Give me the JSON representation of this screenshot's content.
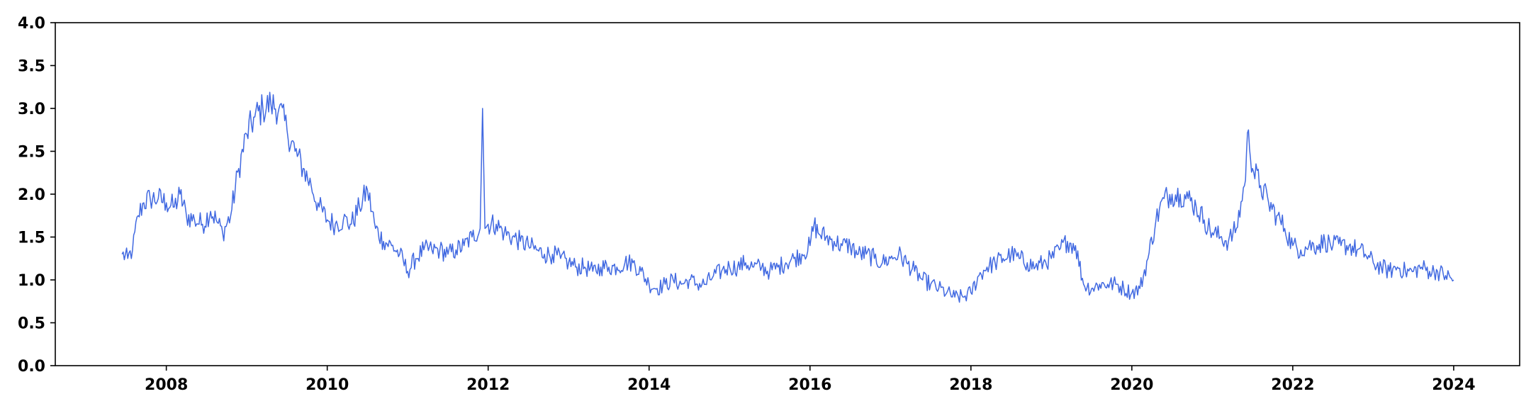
{
  "chart_data": {
    "type": "line",
    "title": "",
    "xlabel": "",
    "ylabel": "",
    "xlim": [
      2006.62,
      2024.82
    ],
    "ylim": [
      0.0,
      4.0
    ],
    "x_ticks": [
      {
        "value": 2008,
        "label": "2008"
      },
      {
        "value": 2010,
        "label": "2010"
      },
      {
        "value": 2012,
        "label": "2012"
      },
      {
        "value": 2014,
        "label": "2014"
      },
      {
        "value": 2016,
        "label": "2016"
      },
      {
        "value": 2018,
        "label": "2018"
      },
      {
        "value": 2020,
        "label": "2020"
      },
      {
        "value": 2022,
        "label": "2022"
      },
      {
        "value": 2024,
        "label": "2024"
      }
    ],
    "y_ticks": [
      {
        "value": 0.0,
        "label": "0.0"
      },
      {
        "value": 0.5,
        "label": "0.5"
      },
      {
        "value": 1.0,
        "label": "1.0"
      },
      {
        "value": 1.5,
        "label": "1.5"
      },
      {
        "value": 2.0,
        "label": "2.0"
      },
      {
        "value": 2.5,
        "label": "2.5"
      },
      {
        "value": 3.0,
        "label": "3.0"
      },
      {
        "value": 3.5,
        "label": "3.5"
      },
      {
        "value": 4.0,
        "label": "4.0"
      }
    ],
    "grid": false,
    "legend": "none",
    "series": [
      {
        "color": "#4169e1",
        "x": [
          2007.45,
          2007.52,
          2007.58,
          2007.65,
          2007.72,
          2007.8,
          2007.9,
          2008.0,
          2008.1,
          2008.17,
          2008.25,
          2008.35,
          2008.45,
          2008.55,
          2008.62,
          2008.7,
          2008.8,
          2008.9,
          2009.0,
          2009.1,
          2009.2,
          2009.3,
          2009.4,
          2009.5,
          2009.6,
          2009.7,
          2009.8,
          2009.9,
          2010.0,
          2010.1,
          2010.2,
          2010.3,
          2010.4,
          2010.5,
          2010.6,
          2010.7,
          2010.8,
          2010.9,
          2011.0,
          2011.1,
          2011.2,
          2011.3,
          2011.4,
          2011.5,
          2011.6,
          2011.7,
          2011.8,
          2011.9,
          2011.93,
          2011.96,
          2012.0,
          2012.1,
          2012.2,
          2012.3,
          2012.4,
          2012.5,
          2012.6,
          2012.7,
          2012.8,
          2012.9,
          2013.0,
          2013.1,
          2013.2,
          2013.3,
          2013.4,
          2013.5,
          2013.6,
          2013.7,
          2013.8,
          2013.9,
          2014.0,
          2014.1,
          2014.2,
          2014.3,
          2014.4,
          2014.5,
          2014.6,
          2014.7,
          2014.8,
          2014.9,
          2015.0,
          2015.1,
          2015.2,
          2015.3,
          2015.4,
          2015.5,
          2015.6,
          2015.7,
          2015.8,
          2015.9,
          2016.0,
          2016.05,
          2016.1,
          2016.2,
          2016.3,
          2016.4,
          2016.5,
          2016.6,
          2016.7,
          2016.8,
          2016.9,
          2017.0,
          2017.1,
          2017.2,
          2017.3,
          2017.4,
          2017.5,
          2017.6,
          2017.7,
          2017.8,
          2017.9,
          2018.0,
          2018.1,
          2018.2,
          2018.3,
          2018.4,
          2018.5,
          2018.6,
          2018.7,
          2018.8,
          2018.9,
          2019.0,
          2019.1,
          2019.2,
          2019.3,
          2019.4,
          2019.5,
          2019.6,
          2019.7,
          2019.8,
          2019.9,
          2020.0,
          2020.1,
          2020.2,
          2020.3,
          2020.4,
          2020.5,
          2020.6,
          2020.7,
          2020.8,
          2020.9,
          2021.0,
          2021.1,
          2021.2,
          2021.3,
          2021.4,
          2021.45,
          2021.5,
          2021.6,
          2021.7,
          2021.8,
          2021.9,
          2022.0,
          2022.1,
          2022.2,
          2022.3,
          2022.4,
          2022.5,
          2022.6,
          2022.7,
          2022.8,
          2022.9,
          2023.0,
          2023.1,
          2023.2,
          2023.3,
          2023.4,
          2023.5,
          2023.6,
          2023.7,
          2023.8,
          2023.9,
          2024.0
        ],
        "y": [
          1.3,
          1.25,
          1.35,
          1.75,
          1.9,
          1.95,
          1.95,
          1.9,
          1.85,
          2.0,
          1.75,
          1.7,
          1.65,
          1.8,
          1.7,
          1.55,
          1.75,
          2.3,
          2.7,
          2.9,
          3.0,
          3.05,
          3.0,
          2.75,
          2.5,
          2.3,
          2.1,
          1.85,
          1.7,
          1.65,
          1.7,
          1.65,
          1.85,
          2.05,
          1.6,
          1.45,
          1.4,
          1.3,
          1.1,
          1.25,
          1.35,
          1.35,
          1.35,
          1.3,
          1.35,
          1.4,
          1.5,
          1.6,
          3.0,
          1.6,
          1.65,
          1.65,
          1.55,
          1.5,
          1.45,
          1.4,
          1.35,
          1.3,
          1.3,
          1.25,
          1.2,
          1.15,
          1.15,
          1.1,
          1.15,
          1.15,
          1.15,
          1.2,
          1.2,
          1.1,
          0.95,
          0.9,
          0.95,
          1.0,
          0.95,
          1.0,
          0.95,
          0.95,
          1.05,
          1.1,
          1.15,
          1.15,
          1.2,
          1.15,
          1.15,
          1.1,
          1.15,
          1.2,
          1.25,
          1.3,
          1.4,
          1.65,
          1.55,
          1.5,
          1.45,
          1.4,
          1.4,
          1.3,
          1.3,
          1.25,
          1.2,
          1.25,
          1.3,
          1.2,
          1.1,
          1.0,
          0.95,
          0.9,
          0.85,
          0.8,
          0.8,
          0.85,
          1.05,
          1.15,
          1.2,
          1.25,
          1.3,
          1.25,
          1.2,
          1.15,
          1.2,
          1.25,
          1.35,
          1.45,
          1.4,
          0.95,
          0.9,
          0.95,
          0.95,
          0.95,
          0.9,
          0.85,
          0.9,
          1.25,
          1.7,
          1.95,
          2.0,
          2.0,
          1.95,
          1.85,
          1.7,
          1.55,
          1.5,
          1.45,
          1.6,
          2.1,
          2.75,
          2.3,
          2.1,
          1.9,
          1.75,
          1.6,
          1.4,
          1.35,
          1.4,
          1.4,
          1.45,
          1.4,
          1.4,
          1.4,
          1.35,
          1.3,
          1.2,
          1.15,
          1.1,
          1.15,
          1.1,
          1.1,
          1.15,
          1.1,
          1.1,
          1.05,
          1.0
        ]
      }
    ]
  }
}
